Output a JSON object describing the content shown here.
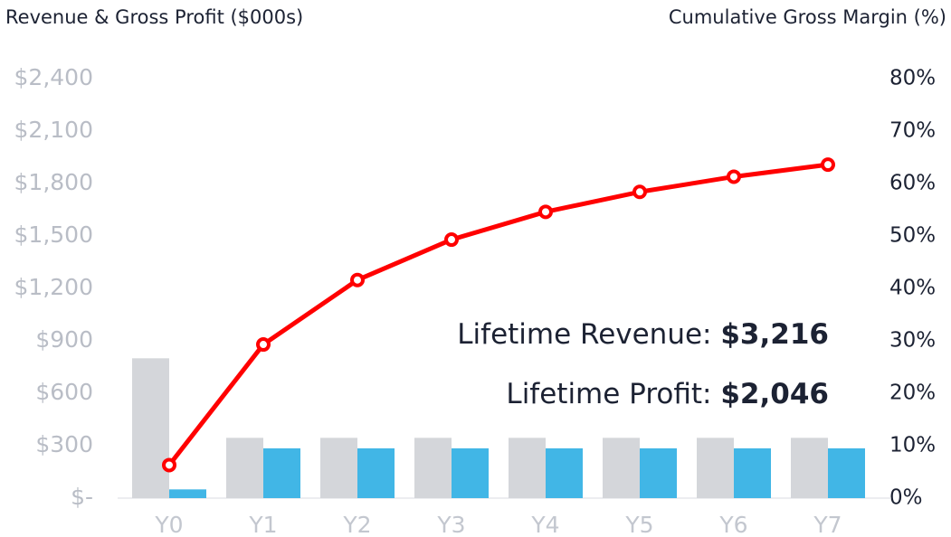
{
  "chart_data": {
    "type": "bar_line",
    "title": "Revenue & Gross Profit ($000s)",
    "y2_title": "Cumulative Gross Margin (%)",
    "categories": [
      "Y0",
      "Y1",
      "Y2",
      "Y3",
      "Y4",
      "Y5",
      "Y6",
      "Y7"
    ],
    "series": [
      {
        "color": "#d4d6da",
        "values": [
          800,
          345,
          345,
          345,
          345,
          345,
          345,
          345
        ]
      },
      {
        "color": "#41b6e6",
        "values": [
          50,
          285,
          285,
          285,
          285,
          285,
          285,
          285
        ]
      },
      {
        "color": "#ff0000",
        "axis": "y2",
        "values": [
          6.3,
          29.3,
          41.6,
          49.3,
          54.6,
          58.4,
          61.3,
          63.6
        ]
      }
    ],
    "ylim": [
      0,
      2400
    ],
    "yticks": [
      {
        "value": 0,
        "label": "$-"
      },
      {
        "value": 300,
        "label": "$300"
      },
      {
        "value": 600,
        "label": "$600"
      },
      {
        "value": 900,
        "label": "$900"
      },
      {
        "value": 1200,
        "label": "$1,200"
      },
      {
        "value": 1500,
        "label": "$1,500"
      },
      {
        "value": 1800,
        "label": "$1,800"
      },
      {
        "value": 2100,
        "label": "$2,100"
      },
      {
        "value": 2400,
        "label": "$2,400"
      }
    ],
    "y2lim": [
      0,
      80
    ],
    "y2ticks": [
      {
        "value": 0,
        "label": "0%"
      },
      {
        "value": 10,
        "label": "10%"
      },
      {
        "value": 20,
        "label": "20%"
      },
      {
        "value": 30,
        "label": "30%"
      },
      {
        "value": 40,
        "label": "40%"
      },
      {
        "value": 50,
        "label": "50%"
      },
      {
        "value": 60,
        "label": "60%"
      },
      {
        "value": 70,
        "label": "70%"
      },
      {
        "value": 80,
        "label": "80%"
      }
    ],
    "annotations": [
      {
        "label": "Lifetime Revenue:",
        "value": "$3,216"
      },
      {
        "label": "Lifetime Profit:",
        "value": "$2,046"
      }
    ]
  }
}
